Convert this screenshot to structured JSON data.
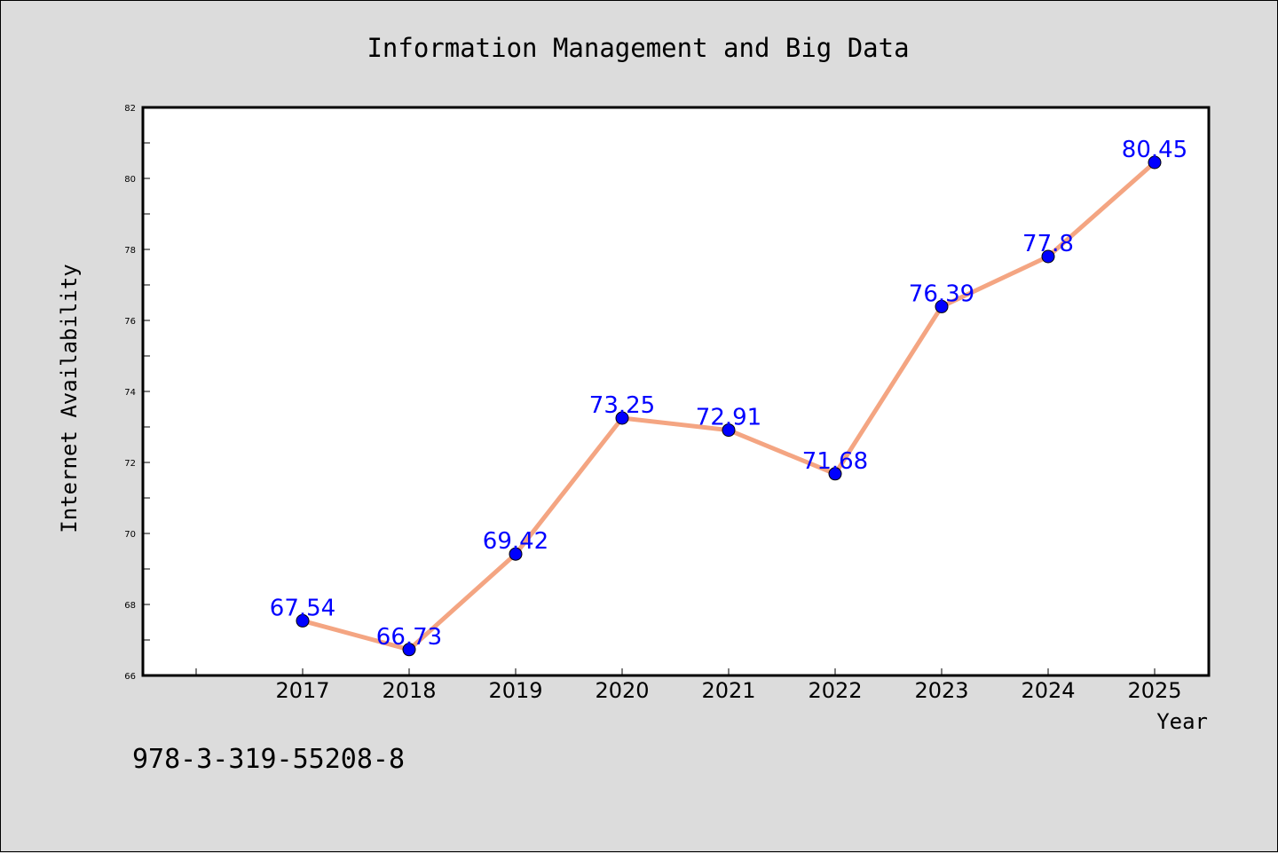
{
  "footer_text": "978-3-319-55208-8",
  "chart_data": {
    "type": "line",
    "title": "Information Management and Big Data",
    "xlabel": "Year",
    "ylabel": "Internet Availability",
    "categories": [
      "2017",
      "2018",
      "2019",
      "2020",
      "2021",
      "2022",
      "2023",
      "2024",
      "2025"
    ],
    "series": [
      {
        "values": [
          67.54,
          66.73,
          69.42,
          73.25,
          72.91,
          71.68,
          76.39,
          77.8,
          80.45
        ],
        "labels": [
          "67.54",
          "66.73",
          "69.42",
          "73.25",
          "72.91",
          "71.68",
          "76.39",
          "77.8",
          "80.45"
        ],
        "line_color": "#f4a582",
        "marker_color": "#0000ff"
      }
    ],
    "ylim": [
      66,
      82
    ],
    "yticks": [
      "66",
      "68",
      "70",
      "72",
      "74",
      "76",
      "78",
      "80",
      "82"
    ],
    "grid": false,
    "legend": "none",
    "label_color": "#0000ff",
    "background": "#dcdcdc",
    "plot_background": "#ffffff"
  }
}
